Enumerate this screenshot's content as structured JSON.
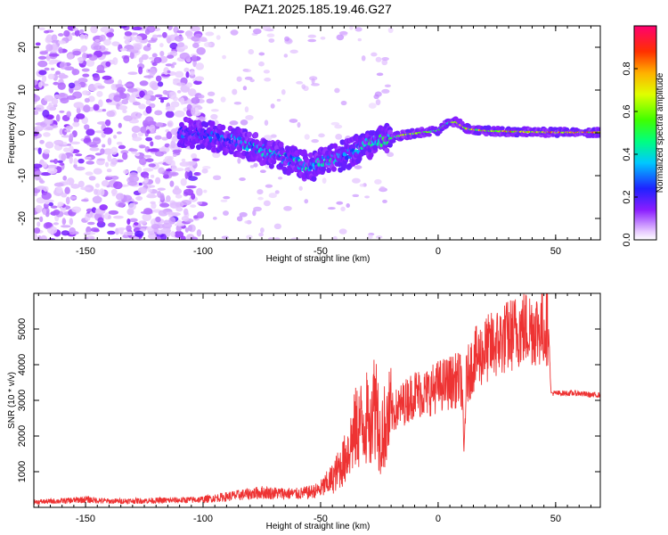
{
  "title": "PAZ1.2025.185.19.46.G27",
  "chart_data": [
    {
      "type": "heatmap",
      "xlabel": "Height of straight line (km)",
      "ylabel": "Frequency (Hz)",
      "xlim": [
        -172,
        69
      ],
      "ylim": [
        -25,
        25
      ],
      "xticks": [
        -150,
        -100,
        -50,
        0,
        50
      ],
      "yticks": [
        -20,
        -10,
        0,
        10,
        20
      ],
      "colorbar": {
        "label": "Normalized spectral amplitude",
        "range": [
          0,
          1
        ],
        "ticks": [
          0.0,
          0.2,
          0.4,
          0.6,
          0.8
        ]
      },
      "ridge": {
        "x": [
          -105,
          -95,
          -85,
          -75,
          -65,
          -55,
          -45,
          -38,
          -33,
          -25,
          -15,
          -5,
          0,
          5,
          8,
          12,
          20,
          30,
          40,
          50,
          60,
          69
        ],
        "freq": [
          0,
          -1,
          -2,
          -4,
          -6,
          -8,
          -6,
          -5,
          -3,
          -2,
          -0.5,
          0.2,
          0.5,
          2.5,
          2.5,
          1,
          0.5,
          0.3,
          0.2,
          0.1,
          0.1,
          0.1
        ],
        "peak_amplitude": [
          0.3,
          0.35,
          0.4,
          0.45,
          0.45,
          0.45,
          0.5,
          0.35,
          0.5,
          0.55,
          0.75,
          0.7,
          0.55,
          0.65,
          0.8,
          0.8,
          0.85,
          0.9,
          0.95,
          0.95,
          0.95,
          0.95
        ]
      }
    },
    {
      "type": "line",
      "xlabel": "Height of straight line (km)",
      "ylabel": "SNR (10 * v/v)",
      "xlim": [
        -172,
        69
      ],
      "ylim": [
        0,
        6000
      ],
      "xticks": [
        -150,
        -100,
        -50,
        0,
        50
      ],
      "yticks": [
        1000,
        2000,
        3000,
        4000,
        5000
      ],
      "series": [
        {
          "color": "#ee3333",
          "x": [
            -172,
            -160,
            -150,
            -140,
            -130,
            -120,
            -110,
            -100,
            -90,
            -80,
            -75,
            -70,
            -60,
            -55,
            -50,
            -45,
            -40,
            -35,
            -30,
            -28,
            -26,
            -25,
            -20,
            -15,
            -10,
            -5,
            0,
            5,
            10,
            11,
            12,
            15,
            20,
            25,
            30,
            35,
            40,
            45,
            47,
            48,
            55,
            60,
            65,
            69
          ],
          "y": [
            150,
            180,
            220,
            170,
            180,
            190,
            200,
            220,
            300,
            380,
            420,
            400,
            380,
            420,
            500,
            800,
            1300,
            2200,
            2500,
            2800,
            3000,
            2000,
            2600,
            2900,
            3200,
            3200,
            3400,
            3500,
            3600,
            1500,
            3600,
            4100,
            4400,
            4600,
            4800,
            5000,
            5050,
            5000,
            5100,
            3200,
            3200,
            3200,
            3150,
            3150
          ]
        }
      ]
    }
  ]
}
